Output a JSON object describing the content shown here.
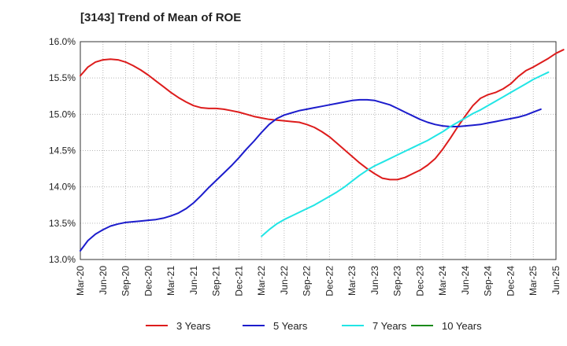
{
  "chart_data": {
    "type": "line",
    "title": "[3143]  Trend of Mean of ROE",
    "xlabel": "",
    "ylabel": "",
    "x_ticks": [
      "Mar-20",
      "Jun-20",
      "Sep-20",
      "Dec-20",
      "Mar-21",
      "Jun-21",
      "Sep-21",
      "Dec-21",
      "Mar-22",
      "Jun-22",
      "Sep-22",
      "Dec-22",
      "Mar-23",
      "Jun-23",
      "Sep-23",
      "Dec-23",
      "Mar-24",
      "Jun-24",
      "Sep-24",
      "Dec-24",
      "Mar-25",
      "Jun-25"
    ],
    "y_ticks": [
      "13.0%",
      "13.5%",
      "14.0%",
      "14.5%",
      "15.0%",
      "15.5%",
      "16.0%"
    ],
    "y_tick_values": [
      13.0,
      13.5,
      14.0,
      14.5,
      15.0,
      15.5,
      16.0
    ],
    "ylim": [
      13.0,
      16.0
    ],
    "grid": true,
    "legend_position": "bottom",
    "series": [
      {
        "name": "3 Years",
        "color": "#dd1c1c",
        "points": [
          [
            "Mar-20",
            15.53
          ],
          [
            "Apr-20",
            15.65
          ],
          [
            "May-20",
            15.72
          ],
          [
            "Jun-20",
            15.75
          ],
          [
            "Jul-20",
            15.76
          ],
          [
            "Aug-20",
            15.75
          ],
          [
            "Sep-20",
            15.72
          ],
          [
            "Oct-20",
            15.67
          ],
          [
            "Nov-20",
            15.61
          ],
          [
            "Dec-20",
            15.54
          ],
          [
            "Jan-21",
            15.46
          ],
          [
            "Feb-21",
            15.38
          ],
          [
            "Mar-21",
            15.3
          ],
          [
            "Apr-21",
            15.23
          ],
          [
            "May-21",
            15.17
          ],
          [
            "Jun-21",
            15.12
          ],
          [
            "Jul-21",
            15.09
          ],
          [
            "Aug-21",
            15.08
          ],
          [
            "Sep-21",
            15.08
          ],
          [
            "Oct-21",
            15.07
          ],
          [
            "Nov-21",
            15.05
          ],
          [
            "Dec-21",
            15.03
          ],
          [
            "Jan-22",
            15.0
          ],
          [
            "Feb-22",
            14.97
          ],
          [
            "Mar-22",
            14.95
          ],
          [
            "Apr-22",
            14.93
          ],
          [
            "May-22",
            14.92
          ],
          [
            "Jun-22",
            14.91
          ],
          [
            "Jul-22",
            14.9
          ],
          [
            "Aug-22",
            14.89
          ],
          [
            "Sep-22",
            14.86
          ],
          [
            "Oct-22",
            14.82
          ],
          [
            "Nov-22",
            14.76
          ],
          [
            "Dec-22",
            14.69
          ],
          [
            "Jan-23",
            14.6
          ],
          [
            "Feb-23",
            14.51
          ],
          [
            "Mar-23",
            14.42
          ],
          [
            "Apr-23",
            14.33
          ],
          [
            "May-23",
            14.25
          ],
          [
            "Jun-23",
            14.18
          ],
          [
            "Jul-23",
            14.12
          ],
          [
            "Aug-23",
            14.1
          ],
          [
            "Sep-23",
            14.1
          ],
          [
            "Oct-23",
            14.13
          ],
          [
            "Nov-23",
            14.18
          ],
          [
            "Dec-23",
            14.23
          ],
          [
            "Jan-24",
            14.3
          ],
          [
            "Feb-24",
            14.39
          ],
          [
            "Mar-24",
            14.52
          ],
          [
            "Apr-24",
            14.67
          ],
          [
            "May-24",
            14.83
          ],
          [
            "Jun-24",
            14.98
          ],
          [
            "Jul-24",
            15.12
          ],
          [
            "Aug-24",
            15.22
          ],
          [
            "Sep-24",
            15.27
          ],
          [
            "Oct-24",
            15.3
          ],
          [
            "Nov-24",
            15.35
          ],
          [
            "Dec-24",
            15.42
          ],
          [
            "Jan-25",
            15.52
          ],
          [
            "Feb-25",
            15.6
          ],
          [
            "Mar-25",
            15.65
          ],
          [
            "Apr-25",
            15.71
          ],
          [
            "May-25",
            15.77
          ],
          [
            "Jun-25",
            15.84
          ],
          [
            "Jul-25",
            15.89
          ]
        ]
      },
      {
        "name": "5 Years",
        "color": "#1c1ccc",
        "points": [
          [
            "Mar-20",
            13.12
          ],
          [
            "Apr-20",
            13.26
          ],
          [
            "May-20",
            13.35
          ],
          [
            "Jun-20",
            13.41
          ],
          [
            "Jul-20",
            13.46
          ],
          [
            "Aug-20",
            13.49
          ],
          [
            "Sep-20",
            13.51
          ],
          [
            "Oct-20",
            13.52
          ],
          [
            "Nov-20",
            13.53
          ],
          [
            "Dec-20",
            13.54
          ],
          [
            "Jan-21",
            13.55
          ],
          [
            "Feb-21",
            13.57
          ],
          [
            "Mar-21",
            13.6
          ],
          [
            "Apr-21",
            13.64
          ],
          [
            "May-21",
            13.7
          ],
          [
            "Jun-21",
            13.78
          ],
          [
            "Jul-21",
            13.88
          ],
          [
            "Aug-21",
            13.99
          ],
          [
            "Sep-21",
            14.09
          ],
          [
            "Oct-21",
            14.19
          ],
          [
            "Nov-21",
            14.29
          ],
          [
            "Dec-21",
            14.4
          ],
          [
            "Jan-22",
            14.52
          ],
          [
            "Feb-22",
            14.63
          ],
          [
            "Mar-22",
            14.75
          ],
          [
            "Apr-22",
            14.86
          ],
          [
            "May-22",
            14.94
          ],
          [
            "Jun-22",
            14.99
          ],
          [
            "Jul-22",
            15.02
          ],
          [
            "Aug-22",
            15.05
          ],
          [
            "Sep-22",
            15.07
          ],
          [
            "Oct-22",
            15.09
          ],
          [
            "Nov-22",
            15.11
          ],
          [
            "Dec-22",
            15.13
          ],
          [
            "Jan-23",
            15.15
          ],
          [
            "Feb-23",
            15.17
          ],
          [
            "Mar-23",
            15.19
          ],
          [
            "Apr-23",
            15.2
          ],
          [
            "May-23",
            15.2
          ],
          [
            "Jun-23",
            15.19
          ],
          [
            "Jul-23",
            15.16
          ],
          [
            "Aug-23",
            15.13
          ],
          [
            "Sep-23",
            15.08
          ],
          [
            "Oct-23",
            15.03
          ],
          [
            "Nov-23",
            14.98
          ],
          [
            "Dec-23",
            14.93
          ],
          [
            "Jan-24",
            14.89
          ],
          [
            "Feb-24",
            14.86
          ],
          [
            "Mar-24",
            14.84
          ],
          [
            "Apr-24",
            14.83
          ],
          [
            "May-24",
            14.83
          ],
          [
            "Jun-24",
            14.84
          ],
          [
            "Jul-24",
            14.85
          ],
          [
            "Aug-24",
            14.86
          ],
          [
            "Sep-24",
            14.88
          ],
          [
            "Oct-24",
            14.9
          ],
          [
            "Nov-24",
            14.92
          ],
          [
            "Dec-24",
            14.94
          ],
          [
            "Jan-25",
            14.96
          ],
          [
            "Feb-25",
            14.99
          ],
          [
            "Mar-25",
            15.03
          ],
          [
            "Apr-25",
            15.07
          ]
        ]
      },
      {
        "name": "7 Years",
        "color": "#22e5e5",
        "points": [
          [
            "Mar-22",
            13.32
          ],
          [
            "Apr-22",
            13.41
          ],
          [
            "May-22",
            13.49
          ],
          [
            "Jun-22",
            13.55
          ],
          [
            "Jul-22",
            13.6
          ],
          [
            "Aug-22",
            13.65
          ],
          [
            "Sep-22",
            13.7
          ],
          [
            "Oct-22",
            13.75
          ],
          [
            "Nov-22",
            13.81
          ],
          [
            "Dec-22",
            13.87
          ],
          [
            "Jan-23",
            13.93
          ],
          [
            "Feb-23",
            14.0
          ],
          [
            "Mar-23",
            14.08
          ],
          [
            "Apr-23",
            14.16
          ],
          [
            "May-23",
            14.23
          ],
          [
            "Jun-23",
            14.29
          ],
          [
            "Jul-23",
            14.34
          ],
          [
            "Aug-23",
            14.39
          ],
          [
            "Sep-23",
            14.44
          ],
          [
            "Oct-23",
            14.49
          ],
          [
            "Nov-23",
            14.54
          ],
          [
            "Dec-23",
            14.59
          ],
          [
            "Jan-24",
            14.64
          ],
          [
            "Feb-24",
            14.7
          ],
          [
            "Mar-24",
            14.76
          ],
          [
            "Apr-24",
            14.83
          ],
          [
            "May-24",
            14.89
          ],
          [
            "Jun-24",
            14.95
          ],
          [
            "Jul-24",
            15.01
          ],
          [
            "Aug-24",
            15.06
          ],
          [
            "Sep-24",
            15.12
          ],
          [
            "Oct-24",
            15.18
          ],
          [
            "Nov-24",
            15.24
          ],
          [
            "Dec-24",
            15.3
          ],
          [
            "Jan-25",
            15.36
          ],
          [
            "Feb-25",
            15.42
          ],
          [
            "Mar-25",
            15.48
          ],
          [
            "Apr-25",
            15.53
          ],
          [
            "May-25",
            15.58
          ]
        ]
      },
      {
        "name": "10 Years",
        "color": "#1a8a1a",
        "points": []
      }
    ]
  }
}
